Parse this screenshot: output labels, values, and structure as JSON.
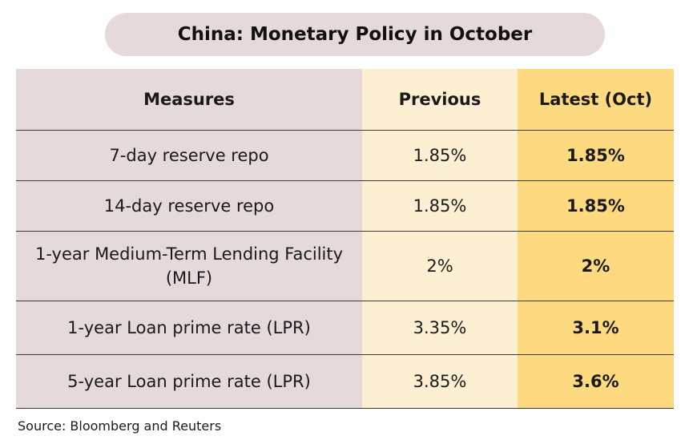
{
  "title": "China: Monetary Policy in October",
  "source": "Source: Bloomberg and Reuters",
  "chart_data": {
    "type": "table",
    "title": "China: Monetary Policy in October",
    "columns": [
      "Measures",
      "Previous",
      "Latest (Oct)"
    ],
    "rows": [
      {
        "measure": "7-day reserve repo",
        "previous": "1.85%",
        "latest": "1.85%"
      },
      {
        "measure": "14-day reserve repo",
        "previous": "1.85%",
        "latest": "1.85%"
      },
      {
        "measure": "1-year Medium-Term Lending Facility (MLF)",
        "previous": "2%",
        "latest": "2%"
      },
      {
        "measure": "1-year Loan prime rate (LPR)",
        "previous": "3.35%",
        "latest": "3.1%"
      },
      {
        "measure": "5-year Loan prime rate (LPR)",
        "previous": "3.85%",
        "latest": "3.6%"
      }
    ]
  },
  "colors": {
    "measures_column": "#e5d9d9",
    "previous_column": "#fdf0d2",
    "latest_column": "#fdd97f",
    "title_pill": "#e5d9d9"
  }
}
